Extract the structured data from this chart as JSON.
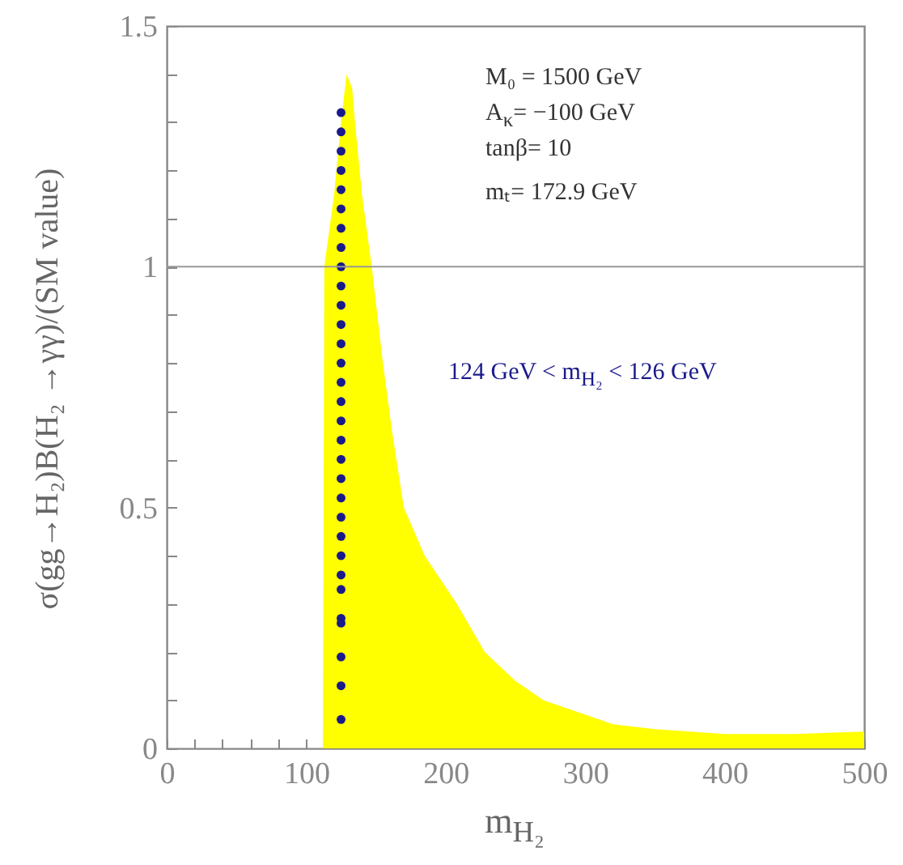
{
  "chart_data": {
    "type": "area",
    "xlabel": "m$_{H₂}$",
    "ylabel": "σ(gg→H₂)B(H₂ →γγ)/(SM value)",
    "annotations": [
      "M₀ = 1500 GeV",
      "A$_{κ}$= −100 GeV",
      "tanβ= 10",
      "mₜ= 172.9 GeV",
      "124 GeV < m$_{H₂}$ < 126 GeV"
    ],
    "series": [
      {
        "color": "#ffff00",
        "x": [
          112,
          113,
          120,
          125,
          129,
          133,
          135,
          140,
          147,
          155,
          162,
          170,
          185,
          208,
          228,
          250,
          270,
          300,
          320,
          350,
          400,
          450,
          500
        ],
        "values": [
          0,
          1.0,
          1.15,
          1.3,
          1.4,
          1.37,
          1.3,
          1.15,
          1.0,
          0.8,
          0.65,
          0.5,
          0.4,
          0.3,
          0.2,
          0.14,
          0.1,
          0.07,
          0.05,
          0.04,
          0.03,
          0.03,
          0.035
        ]
      },
      {
        "type": "scatter",
        "color": "#1a1a8c",
        "marker": "circle",
        "x": [
          125,
          125,
          125,
          125,
          125,
          125,
          125,
          125,
          125,
          125,
          125,
          125,
          125,
          125,
          125,
          125,
          125,
          125,
          125,
          125,
          125,
          125,
          125,
          125,
          125,
          125,
          125,
          125,
          125,
          125,
          125
        ],
        "values": [
          0.06,
          0.13,
          0.19,
          0.26,
          0.27,
          0.33,
          0.36,
          0.4,
          0.44,
          0.48,
          0.52,
          0.56,
          0.6,
          0.64,
          0.68,
          0.72,
          0.76,
          0.8,
          0.84,
          0.88,
          0.92,
          0.96,
          1.0,
          1.04,
          1.08,
          1.12,
          1.16,
          1.2,
          1.24,
          1.28,
          1.32
        ]
      }
    ],
    "xlim": [
      0,
      500
    ],
    "xticks": [
      0,
      {
        "value": 20,
        "label": null
      },
      {
        "value": 40,
        "label": null
      },
      {
        "value": 60,
        "label": null
      },
      {
        "value": 80,
        "label": null
      },
      100,
      {
        "value": 120,
        "label": null
      },
      {
        "value": 140,
        "label": null
      },
      {
        "value": 160,
        "label": null
      },
      {
        "value": 180,
        "label": null
      },
      200,
      {
        "value": 220,
        "label": null
      },
      {
        "value": 240,
        "label": null
      },
      {
        "value": 260,
        "label": null
      },
      {
        "value": 280,
        "label": null
      },
      300,
      {
        "value": 320,
        "label": null
      },
      {
        "value": 340,
        "label": null
      },
      {
        "value": 360,
        "label": null
      },
      {
        "value": 380,
        "label": null
      },
      400,
      {
        "value": 420,
        "label": null
      },
      {
        "value": 440,
        "label": null
      },
      {
        "value": 460,
        "label": null
      },
      {
        "value": 480,
        "label": null
      },
      500
    ],
    "ylim": [
      0,
      1.5
    ],
    "yticks": [
      0,
      {
        "value": 0.1,
        "label": null
      },
      {
        "value": 0.2,
        "label": null
      },
      {
        "value": 0.3,
        "label": null
      },
      {
        "value": 0.4,
        "label": null
      },
      0.5,
      {
        "value": 0.6,
        "label": null
      },
      {
        "value": 0.7,
        "label": null
      },
      {
        "value": 0.8,
        "label": null
      },
      {
        "value": 0.9,
        "label": null
      },
      1,
      {
        "value": 1.1,
        "label": null
      },
      {
        "value": 1.2,
        "label": null
      },
      {
        "value": 1.3,
        "label": null
      },
      {
        "value": 1.4,
        "label": null
      },
      1.5
    ],
    "ref_lines": [
      {
        "axis": "y",
        "value": 1,
        "color": "#999999"
      }
    ],
    "grid": false
  }
}
